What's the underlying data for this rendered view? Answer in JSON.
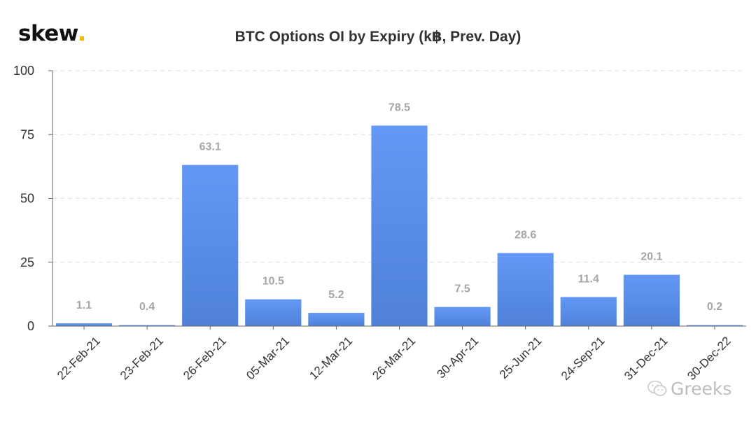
{
  "brand": {
    "name": "skew",
    "dot_color": "#f5b800"
  },
  "watermark": {
    "text": "Greeks",
    "icon": "wechat-icon"
  },
  "colors": {
    "bar_top": "#6398f6",
    "bar_bottom": "#4f81d8",
    "label": "#a6a6a6",
    "grid": "#dddddd",
    "axis": "#666666"
  },
  "chart_data": {
    "type": "bar",
    "title": "BTC Options OI by Expiry (k฿, Prev. Day)",
    "xlabel": "",
    "ylabel": "",
    "ylim": [
      0,
      100
    ],
    "yticks": [
      0,
      25,
      50,
      75,
      100
    ],
    "grid": true,
    "categories": [
      "22-Feb-21",
      "23-Feb-21",
      "26-Feb-21",
      "05-Mar-21",
      "12-Mar-21",
      "26-Mar-21",
      "30-Apr-21",
      "25-Jun-21",
      "24-Sep-21",
      "31-Dec-21",
      "30-Dec-22"
    ],
    "values": [
      1.1,
      0.4,
      63.1,
      10.5,
      5.2,
      78.5,
      7.5,
      28.6,
      11.4,
      20.1,
      0.2
    ],
    "data_labels": [
      "1.1",
      "0.4",
      "63.1",
      "10.5",
      "5.2",
      "78.5",
      "7.5",
      "28.6",
      "11.4",
      "20.1",
      "0.2"
    ]
  }
}
